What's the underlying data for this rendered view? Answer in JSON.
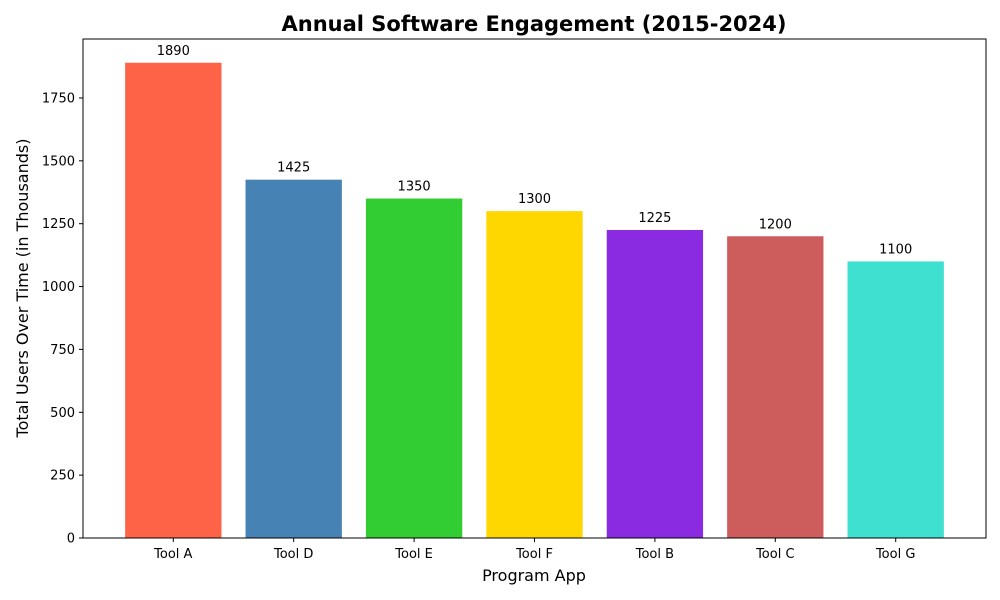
{
  "chart_data": {
    "type": "bar",
    "title": "Annual Software Engagement (2015-2024)",
    "xlabel": "Program App",
    "ylabel": "Total Users Over Time (in Thousands)",
    "categories": [
      "Tool A",
      "Tool D",
      "Tool E",
      "Tool F",
      "Tool B",
      "Tool C",
      "Tool G"
    ],
    "values": [
      1890,
      1425,
      1350,
      1300,
      1225,
      1200,
      1100
    ],
    "colors": [
      "#FF6347",
      "#4682B4",
      "#32CD32",
      "#FFD700",
      "#8A2BE2",
      "#CD5C5C",
      "#40E0D0"
    ],
    "ylim": [
      0,
      1984.5
    ],
    "yticks": [
      0,
      250,
      500,
      750,
      1000,
      1250,
      1500,
      1750
    ],
    "grid": false,
    "legend": "none",
    "data_labels": true
  }
}
